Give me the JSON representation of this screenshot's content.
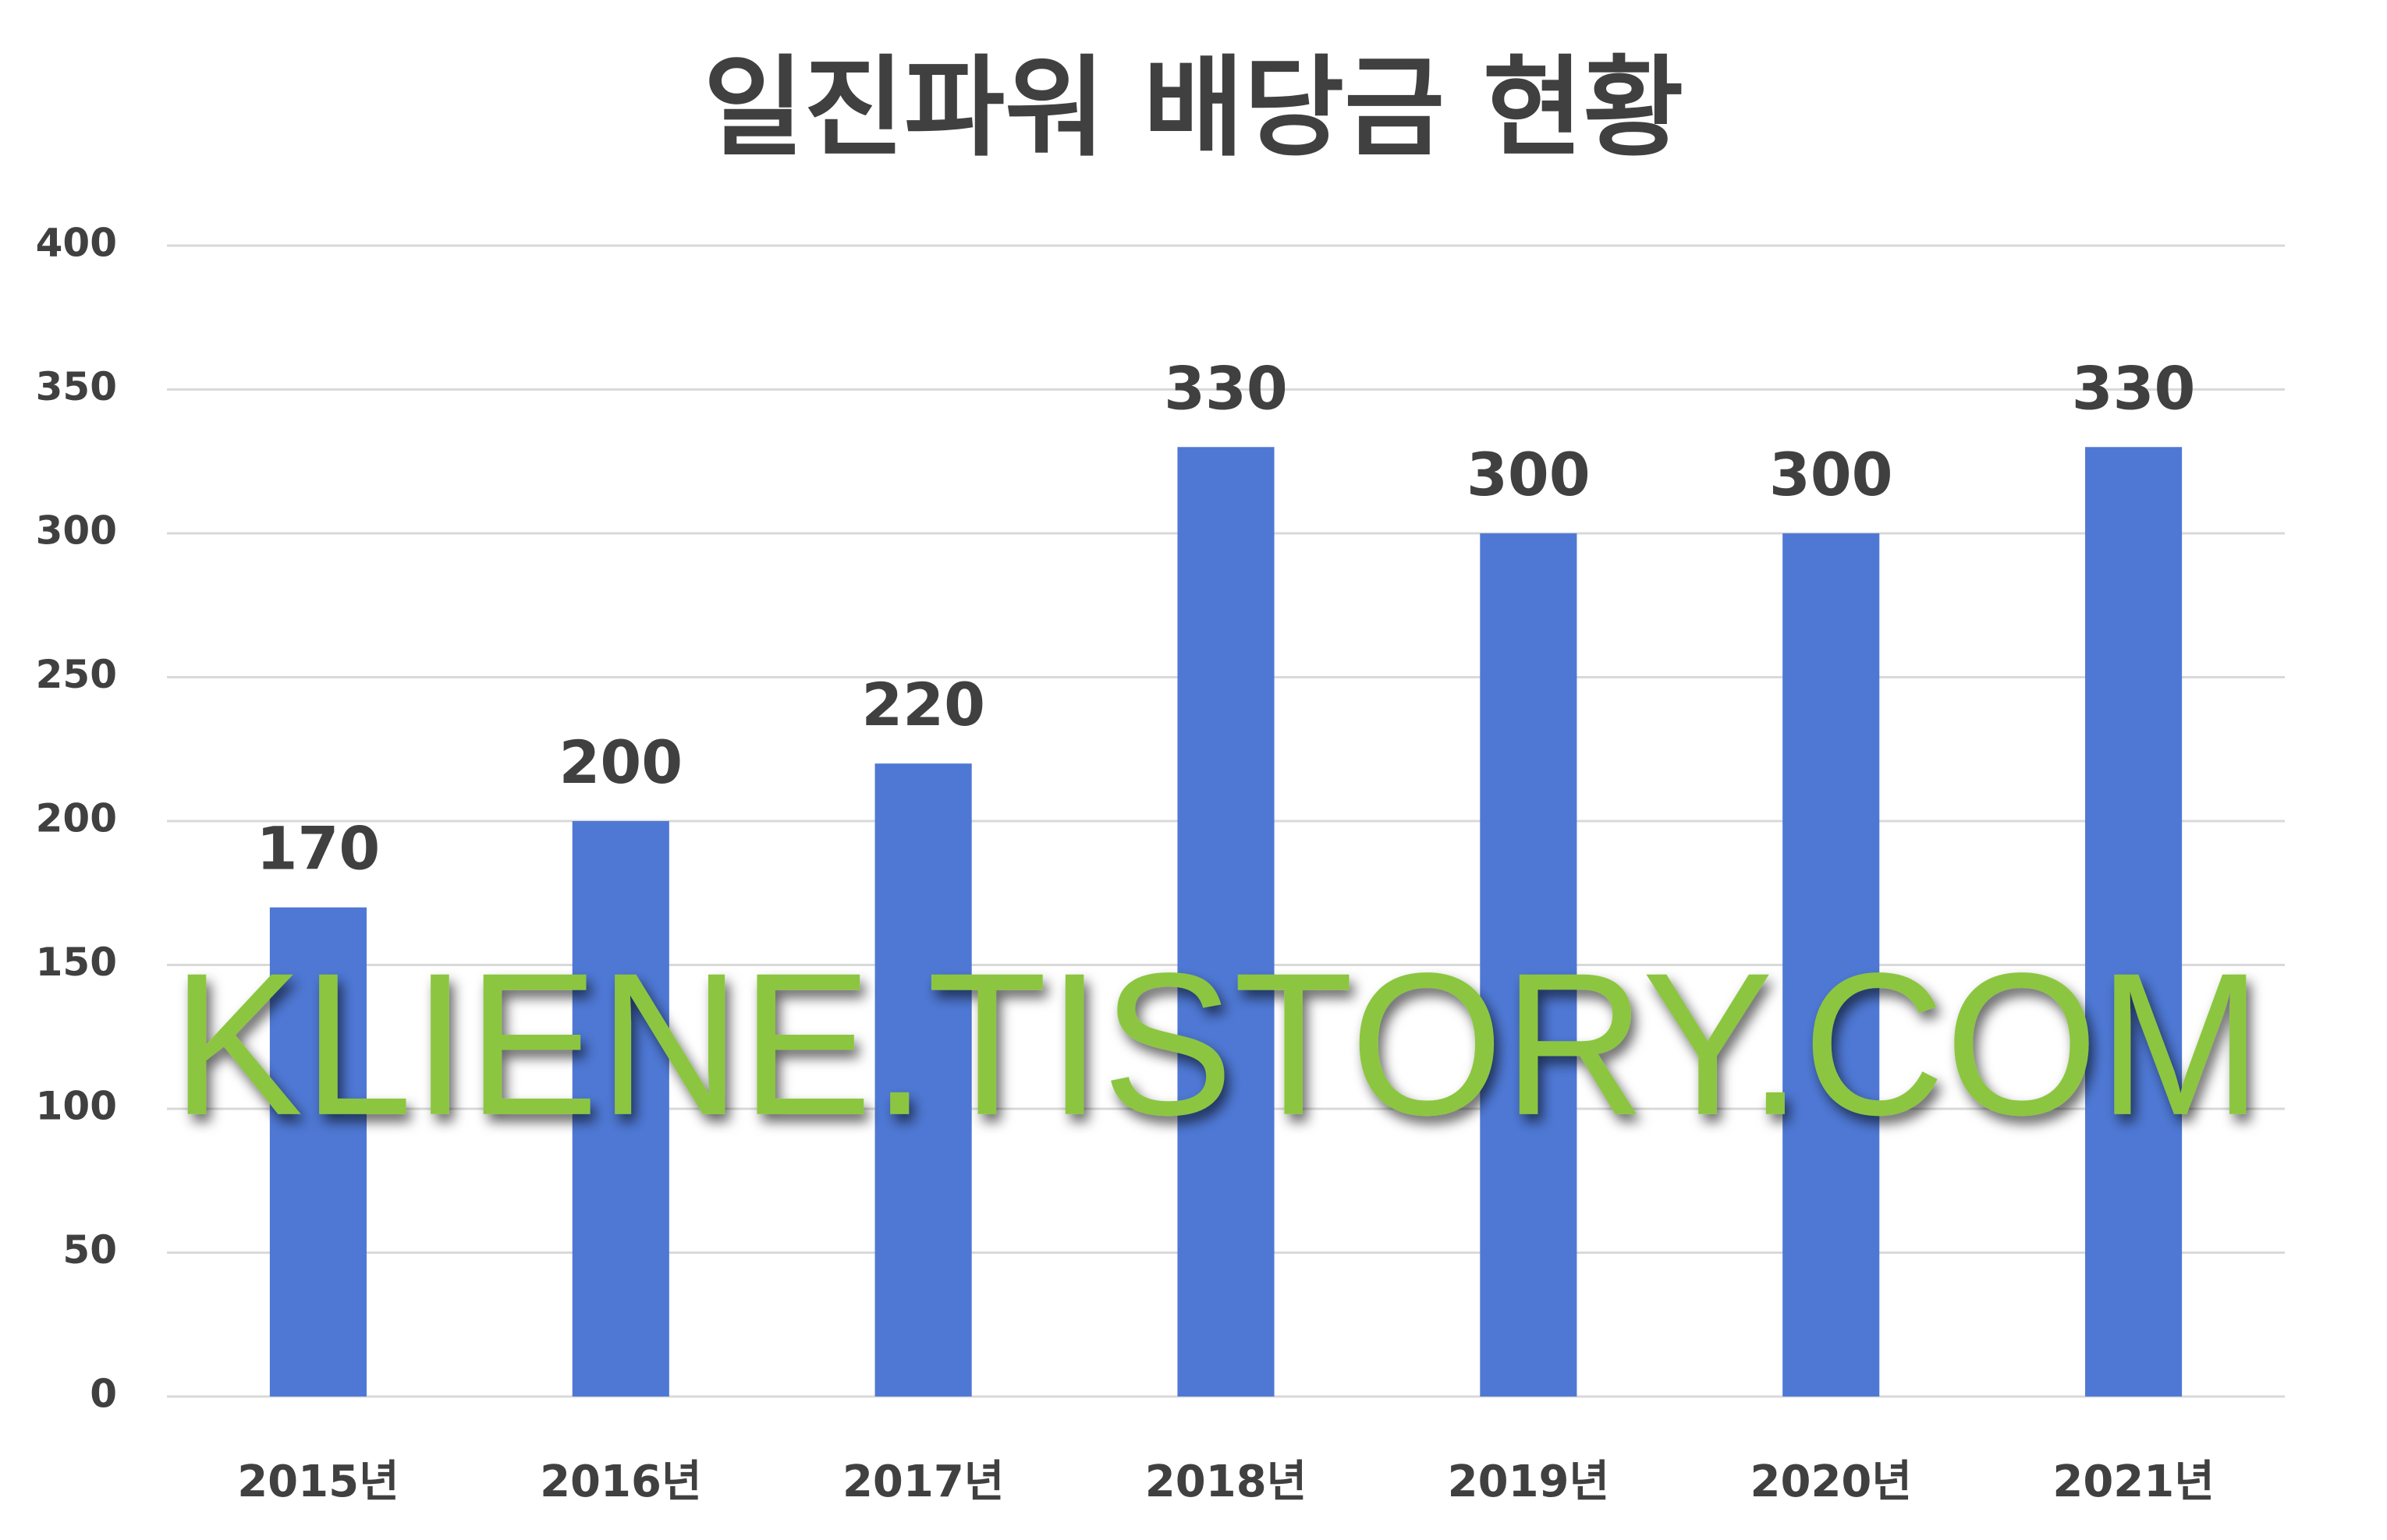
{
  "chart_data": {
    "type": "bar",
    "title": "일진파워 배당금 현황",
    "categories": [
      "2015년",
      "2016년",
      "2017년",
      "2018년",
      "2019년",
      "2020년",
      "2021년"
    ],
    "values": [
      170,
      200,
      220,
      330,
      300,
      300,
      330
    ],
    "color": "#4e78d4",
    "ylim": [
      0,
      400
    ],
    "yticks": [
      0,
      50,
      100,
      150,
      200,
      250,
      300,
      350,
      400
    ],
    "grid": true,
    "annotation": "KLIENE.TISTORY.COM"
  }
}
